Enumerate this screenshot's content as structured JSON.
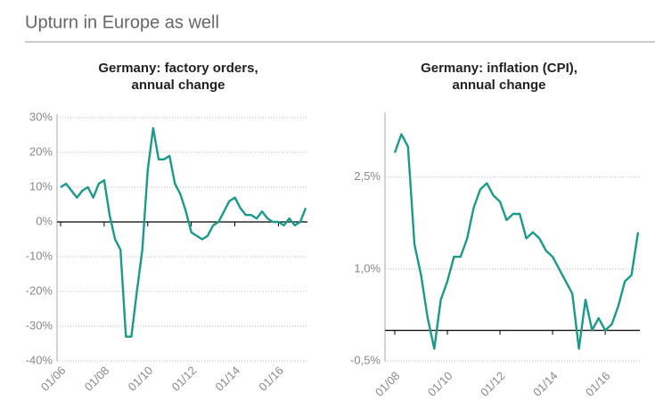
{
  "header": {
    "title": "Upturn in Europe as well"
  },
  "chart_data": [
    {
      "type": "line",
      "title": [
        "Germany: factory orders,",
        "annual change"
      ],
      "categories": [
        "01/06",
        null,
        null,
        null,
        null,
        null,
        null,
        null,
        "01/08",
        null,
        null,
        null,
        null,
        null,
        null,
        null,
        "01/10",
        null,
        null,
        null,
        null,
        null,
        null,
        null,
        "01/12",
        null,
        null,
        null,
        null,
        null,
        null,
        null,
        "01/14",
        null,
        null,
        null,
        null,
        null,
        null,
        null,
        "01/16",
        null,
        null,
        null,
        null,
        null
      ],
      "series": [
        {
          "color": "#1a9a8a",
          "values": [
            10,
            11,
            9,
            7,
            9,
            10,
            7,
            11,
            12,
            2,
            -5,
            -8,
            -33,
            -33,
            -20,
            -8,
            15,
            27,
            18,
            18,
            19,
            11,
            8,
            3,
            -3,
            -4,
            -5,
            -4,
            -1,
            0,
            3,
            6,
            7,
            4,
            2,
            2,
            1,
            3,
            1,
            0,
            0,
            -1,
            1,
            -1,
            0,
            4
          ]
        }
      ],
      "ylim": [
        -40,
        30
      ],
      "yticks": [
        {
          "value": -40,
          "label": "-40%"
        },
        {
          "value": -30,
          "label": "-30%"
        },
        {
          "value": -20,
          "label": "-20%"
        },
        {
          "value": -10,
          "label": "-10%"
        },
        {
          "value": 0,
          "label": "0%"
        },
        {
          "value": 10,
          "label": "10%"
        },
        {
          "value": 20,
          "label": "20%"
        },
        {
          "value": 30,
          "label": "30%"
        }
      ],
      "grid": true
    },
    {
      "type": "line",
      "title": [
        "Germany: inflation (CPI),",
        "annual change"
      ],
      "categories": [
        "01/08",
        null,
        null,
        null,
        null,
        null,
        null,
        null,
        "01/10",
        null,
        null,
        null,
        null,
        null,
        null,
        null,
        "01/12",
        null,
        null,
        null,
        null,
        null,
        null,
        null,
        "01/14",
        null,
        null,
        null,
        null,
        null,
        null,
        null,
        "01/16",
        null,
        null,
        null,
        null,
        null
      ],
      "series": [
        {
          "color": "#1a9a8a",
          "values": [
            2.9,
            3.2,
            3.0,
            1.4,
            0.9,
            0.2,
            -0.3,
            0.5,
            0.8,
            1.2,
            1.2,
            1.5,
            2.0,
            2.3,
            2.4,
            2.2,
            2.1,
            1.8,
            1.9,
            1.9,
            1.5,
            1.6,
            1.5,
            1.3,
            1.2,
            1.0,
            0.8,
            0.6,
            -0.3,
            0.5,
            0.0,
            0.2,
            0.0,
            0.1,
            0.4,
            0.8,
            0.9,
            1.6
          ]
        }
      ],
      "ylim": [
        -0.5,
        3.5
      ],
      "yticks": [
        {
          "value": -0.5,
          "label": "-0,5%"
        },
        {
          "value": 1.0,
          "label": "1,0%"
        },
        {
          "value": 2.5,
          "label": "2,5%"
        }
      ],
      "grid": true
    }
  ]
}
